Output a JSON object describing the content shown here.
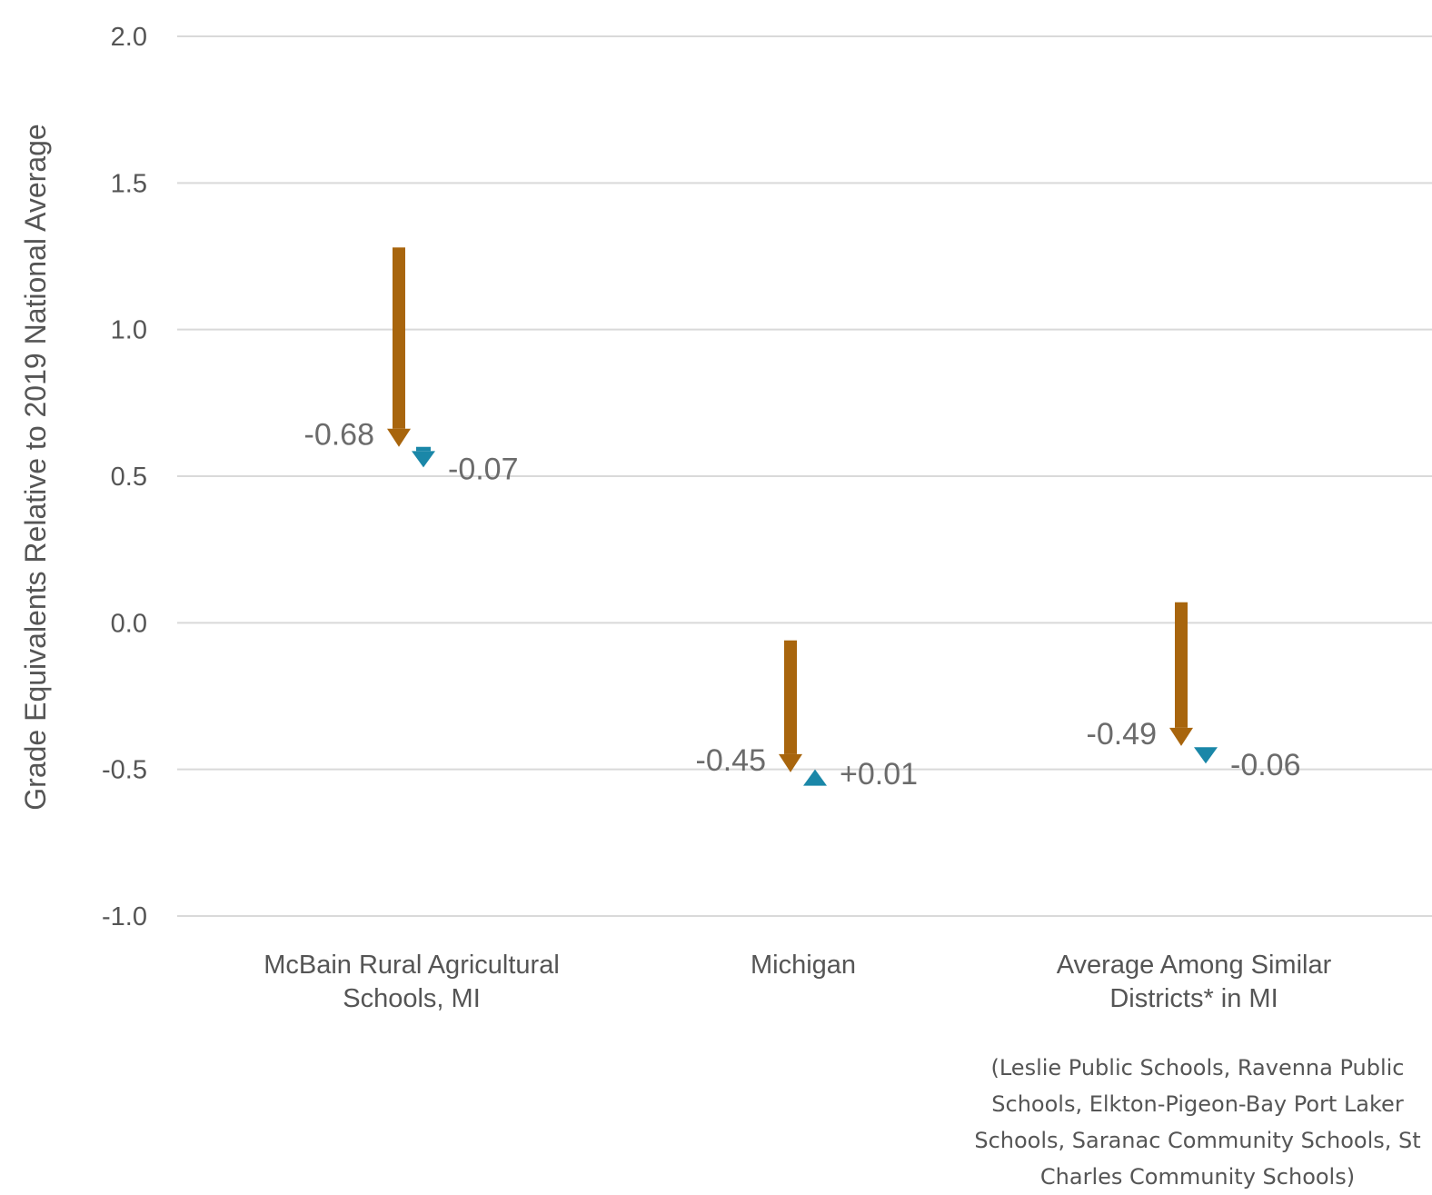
{
  "chart_data": {
    "type": "arrow",
    "ylabel": "Grade Equivalents Relative to 2019 National Average",
    "ylim": [
      -1.0,
      2.0
    ],
    "yticks": [
      "2.0",
      "1.5",
      "1.0",
      "0.5",
      "0.0",
      "-0.5",
      "-1.0"
    ],
    "grid": true,
    "colors": {
      "first_change": "#a8650d",
      "second_change": "#1a87a8"
    },
    "groups": [
      {
        "label_lines": [
          "McBain Rural Agricultural",
          "Schools, MI"
        ],
        "start": 1.28,
        "first_change": -0.68,
        "first_change_label": "-0.68",
        "second_change": -0.07,
        "second_change_label": "-0.07"
      },
      {
        "label_lines": [
          "Michigan"
        ],
        "start": -0.06,
        "first_change": -0.45,
        "first_change_label": "-0.45",
        "second_change": 0.01,
        "second_change_label": "+0.01"
      },
      {
        "label_lines": [
          "Average Among Similar",
          "Districts* in MI"
        ],
        "start": 0.07,
        "first_change": -0.49,
        "first_change_label": "-0.49",
        "second_change": -0.06,
        "second_change_label": "-0.06"
      }
    ],
    "footnote_lines": [
      "(Leslie Public Schools, Ravenna Public",
      "Schools, Elkton-Pigeon-Bay Port Laker",
      "Schools, Saranac Community Schools, St",
      "Charles Community Schools)"
    ]
  }
}
